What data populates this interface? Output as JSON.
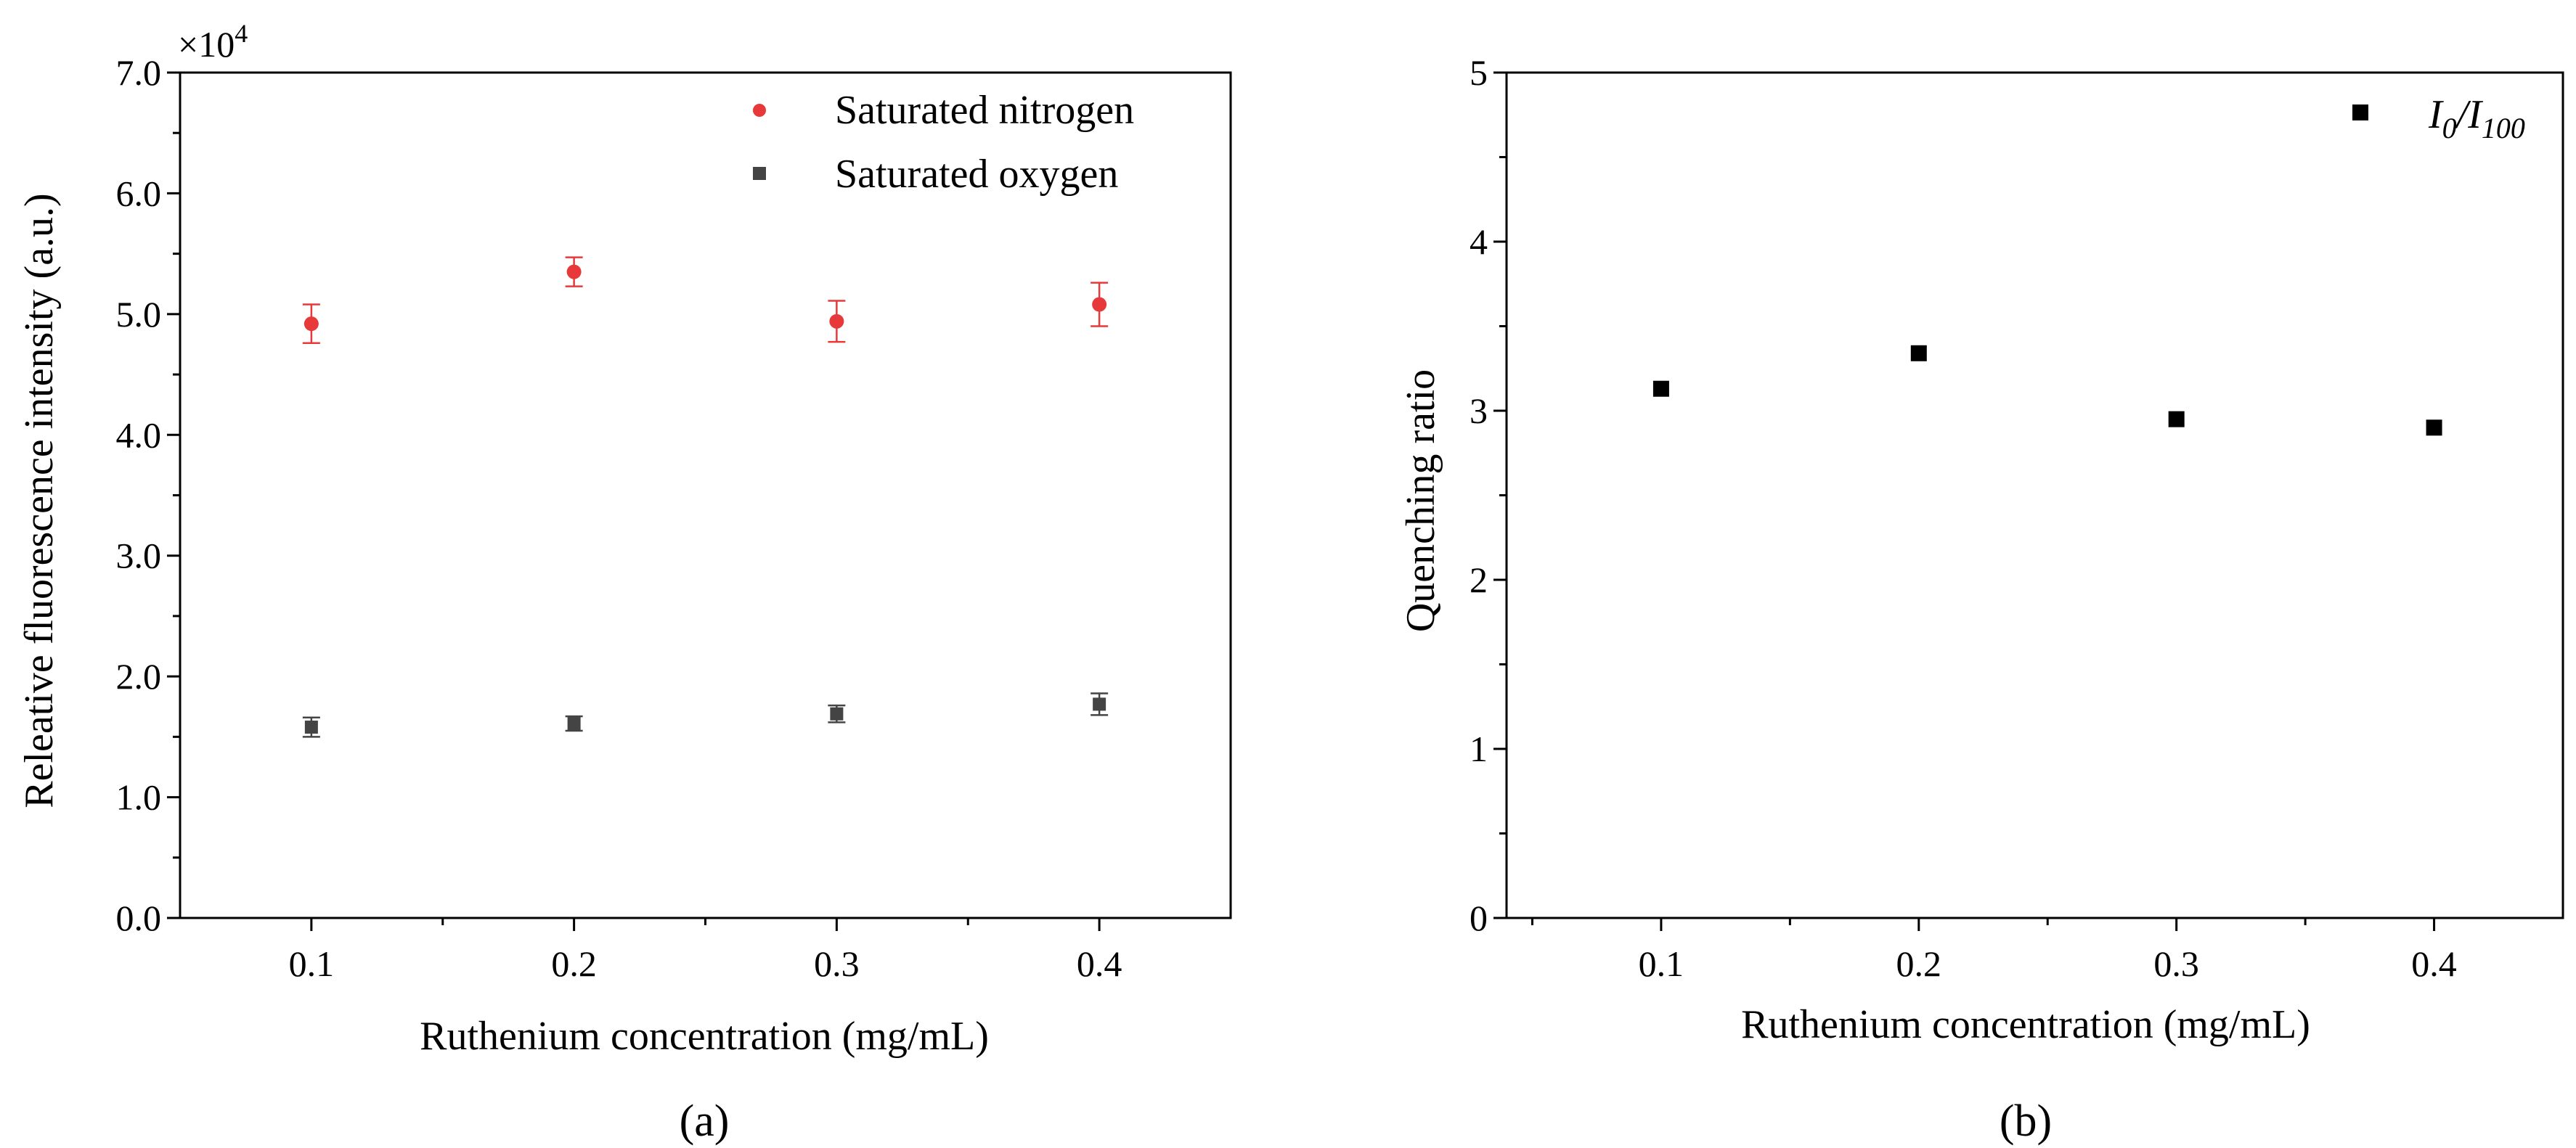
{
  "chart_data": [
    {
      "type": "scatter",
      "panel_label": "(a)",
      "xlabel": "Ruthenium concentration (mg/mL)",
      "ylabel": "Releative fluorescence intensity (a.u.)",
      "y_multiplier_label": "×10",
      "y_multiplier_exponent": "4",
      "xlim": [
        0.05,
        0.45
      ],
      "ylim": [
        0.0,
        7.0
      ],
      "x_ticks": [
        0.1,
        0.2,
        0.3,
        0.4
      ],
      "x_tick_labels": [
        "0.1",
        "0.2",
        "0.3",
        "0.4"
      ],
      "y_ticks": [
        0,
        1,
        2,
        3,
        4,
        5,
        6,
        7
      ],
      "y_tick_labels": [
        "0.0",
        "1.0",
        "2.0",
        "3.0",
        "4.0",
        "5.0",
        "6.0",
        "7.0"
      ],
      "legend_position": "top-right",
      "series": [
        {
          "name": "Saturated nitrogen",
          "color": "#e8393a",
          "marker": "circle",
          "x": [
            0.1,
            0.2,
            0.3,
            0.4
          ],
          "y": [
            4.92,
            5.35,
            4.94,
            5.08
          ],
          "yerr": [
            0.16,
            0.12,
            0.17,
            0.18
          ]
        },
        {
          "name": "Saturated oxygen",
          "color": "#444444",
          "marker": "square",
          "x": [
            0.1,
            0.2,
            0.3,
            0.4
          ],
          "y": [
            1.58,
            1.61,
            1.69,
            1.77
          ],
          "yerr": [
            0.08,
            0.06,
            0.07,
            0.09
          ]
        }
      ]
    },
    {
      "type": "scatter",
      "panel_label": "(b)",
      "xlabel": "Ruthenium concentration (mg/mL)",
      "ylabel": "Quenching ratio",
      "xlim": [
        0.04,
        0.45
      ],
      "ylim": [
        0,
        5
      ],
      "x_ticks": [
        0.1,
        0.2,
        0.3,
        0.4
      ],
      "x_tick_labels": [
        "0.1",
        "0.2",
        "0.3",
        "0.4"
      ],
      "y_ticks": [
        0,
        1,
        2,
        3,
        4,
        5
      ],
      "y_tick_labels": [
        "0",
        "1",
        "2",
        "3",
        "4",
        "5"
      ],
      "legend_position": "top-right",
      "series": [
        {
          "name_parts": [
            "I",
            "0",
            "/I",
            "100"
          ],
          "color": "#000000",
          "marker": "square",
          "x": [
            0.1,
            0.2,
            0.3,
            0.4
          ],
          "y": [
            3.13,
            3.34,
            2.95,
            2.9
          ]
        }
      ]
    }
  ]
}
